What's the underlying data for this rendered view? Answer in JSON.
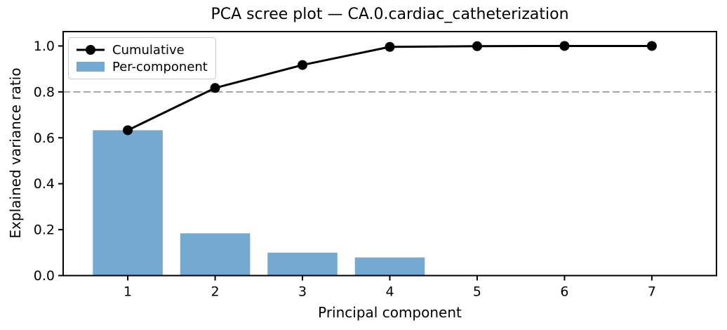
{
  "chart_data": {
    "type": "bar+line",
    "title": "PCA scree plot — CA.0.cardiac_catheterization",
    "xlabel": "Principal component",
    "ylabel": "Explained variance ratio",
    "categories": [
      1,
      2,
      3,
      4,
      5,
      6,
      7
    ],
    "xtick_labels": [
      "1",
      "2",
      "3",
      "4",
      "5",
      "6",
      "7"
    ],
    "yticks": [
      0.0,
      0.2,
      0.4,
      0.6,
      0.8,
      1.0
    ],
    "ytick_labels": [
      "0.0",
      "0.2",
      "0.4",
      "0.6",
      "0.8",
      "1.0"
    ],
    "xlim": [
      0.26,
      7.74
    ],
    "ylim": [
      0.0,
      1.0625
    ],
    "grid": false,
    "bar_width": 0.8,
    "series": [
      {
        "name": "Per-component",
        "type": "bar",
        "color": "#74aad2",
        "values": [
          0.633,
          0.184,
          0.1,
          0.079,
          0.003,
          0.001,
          0.0
        ]
      },
      {
        "name": "Cumulative",
        "type": "line",
        "color": "#000000",
        "marker": "circle",
        "marker_radius": 7,
        "line_width": 3,
        "values": [
          0.633,
          0.817,
          0.917,
          0.996,
          0.999,
          1.0,
          1.0
        ]
      }
    ],
    "threshold_line": {
      "y": 0.8,
      "color": "#9b9b9b",
      "style": "dashed"
    },
    "legend": {
      "position": "upper-left",
      "entries": [
        "Cumulative",
        "Per-component"
      ]
    },
    "axis_color": "#000000",
    "tick_label_color": "#000000"
  }
}
